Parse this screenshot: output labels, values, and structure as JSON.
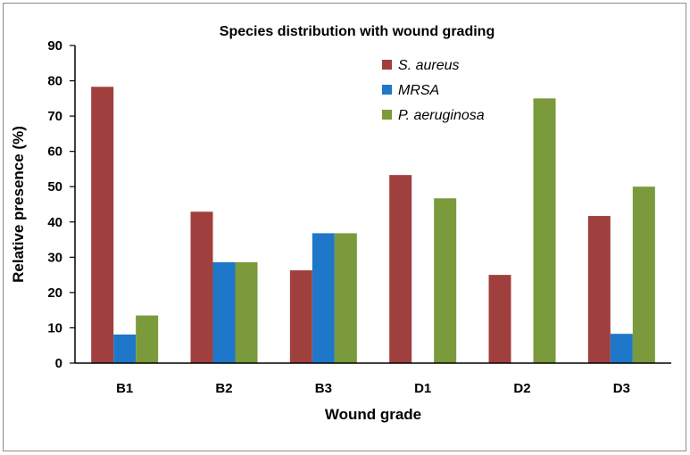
{
  "chart_data": {
    "type": "bar",
    "title": "Species distribution with wound grading",
    "xlabel": "Wound grade",
    "ylabel": "Relative presence (%)",
    "ylim": [
      0,
      90
    ],
    "yticks": [
      "0",
      "10",
      "20",
      "30",
      "40",
      "50",
      "60",
      "70",
      "80",
      "90"
    ],
    "categories": [
      "B1",
      "B2",
      "B3",
      "D1",
      "D2",
      "D3"
    ],
    "legend_position": "top-right",
    "grid": false,
    "series": [
      {
        "name": "S. aureus",
        "color": "#a0403e",
        "values": [
          78.3,
          42.9,
          26.3,
          53.3,
          25.0,
          41.7
        ]
      },
      {
        "name": "MRSA",
        "color": "#1f77c9",
        "values": [
          8.1,
          28.6,
          36.8,
          0,
          0,
          8.3
        ]
      },
      {
        "name": "P. aeruginosa",
        "color": "#7a9a3c",
        "values": [
          13.5,
          28.6,
          36.8,
          46.7,
          75.0,
          50.0
        ]
      }
    ]
  }
}
